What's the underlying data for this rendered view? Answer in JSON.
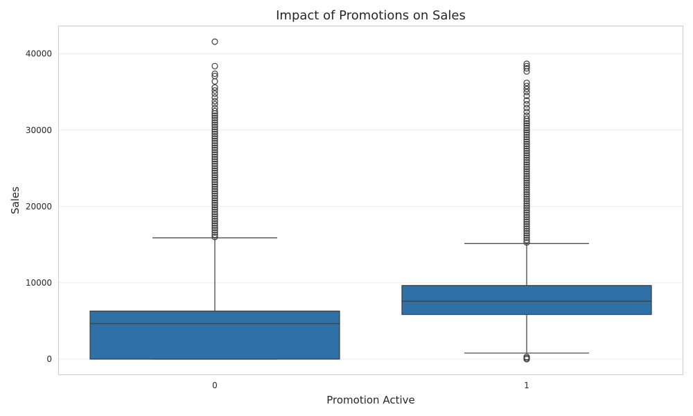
{
  "chart_data": {
    "type": "box",
    "title": "Impact of Promotions on Sales",
    "xlabel": "Promotion Active",
    "ylabel": "Sales",
    "categories": [
      "0",
      "1"
    ],
    "ylim": [
      -2000,
      43700
    ],
    "yticks": [
      0,
      10000,
      20000,
      30000,
      40000
    ],
    "grid": true,
    "color": "#2f71a7",
    "boxes": [
      {
        "category": "0",
        "whisker_low": 0,
        "q1": 0,
        "median": 4650,
        "q3": 6300,
        "whisker_high": 15900,
        "outliers": [
          16000,
          16300,
          16600,
          16900,
          17200,
          17500,
          17800,
          18100,
          18400,
          18700,
          19000,
          19300,
          19600,
          19900,
          20200,
          20500,
          20800,
          21100,
          21400,
          21700,
          22000,
          22300,
          22600,
          22900,
          23200,
          23500,
          23800,
          24100,
          24400,
          24700,
          25000,
          25300,
          25600,
          25900,
          26200,
          26500,
          26800,
          27100,
          27400,
          27700,
          28000,
          28300,
          28600,
          28900,
          29200,
          29500,
          29800,
          30100,
          30400,
          30700,
          31000,
          31300,
          31600,
          31900,
          32200,
          32500,
          32900,
          33400,
          33800,
          34300,
          34800,
          35200,
          35600,
          36400,
          37100,
          37400,
          38400,
          41600
        ]
      },
      {
        "category": "1",
        "whisker_low": 800,
        "q1": 5850,
        "median": 7600,
        "q3": 9650,
        "whisker_high": 15150,
        "outliers": [
          0,
          150,
          300,
          15300,
          15600,
          15900,
          16200,
          16500,
          16800,
          17100,
          17400,
          17700,
          18000,
          18300,
          18600,
          18900,
          19200,
          19500,
          19800,
          20100,
          20400,
          20700,
          21000,
          21300,
          21600,
          21900,
          22200,
          22500,
          22800,
          23100,
          23400,
          23700,
          24000,
          24300,
          24600,
          24900,
          25200,
          25500,
          25800,
          26100,
          26400,
          26700,
          27000,
          27300,
          27600,
          27900,
          28200,
          28500,
          28800,
          29100,
          29400,
          29700,
          30000,
          30300,
          30600,
          30900,
          31200,
          31500,
          31900,
          32400,
          32900,
          33400,
          33900,
          34500,
          35000,
          35400,
          35800,
          36200,
          37700,
          38100,
          38400,
          38700
        ]
      }
    ]
  }
}
